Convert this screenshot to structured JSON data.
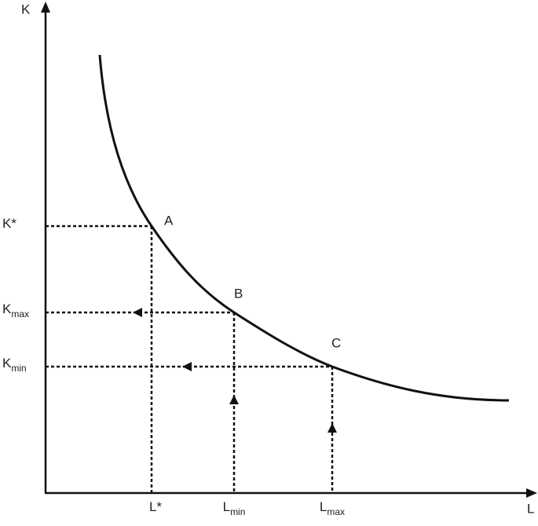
{
  "axes": {
    "y_label": "K",
    "x_label": "L"
  },
  "y_labels": [
    {
      "main": "K*"
    },
    {
      "main": "K",
      "sub": "max"
    },
    {
      "main": "K",
      "sub": "min"
    }
  ],
  "x_labels": [
    {
      "main": "L*"
    },
    {
      "main": "L",
      "sub": "min"
    },
    {
      "main": "L",
      "sub": "max"
    }
  ],
  "points": [
    "A",
    "B",
    "C"
  ]
}
